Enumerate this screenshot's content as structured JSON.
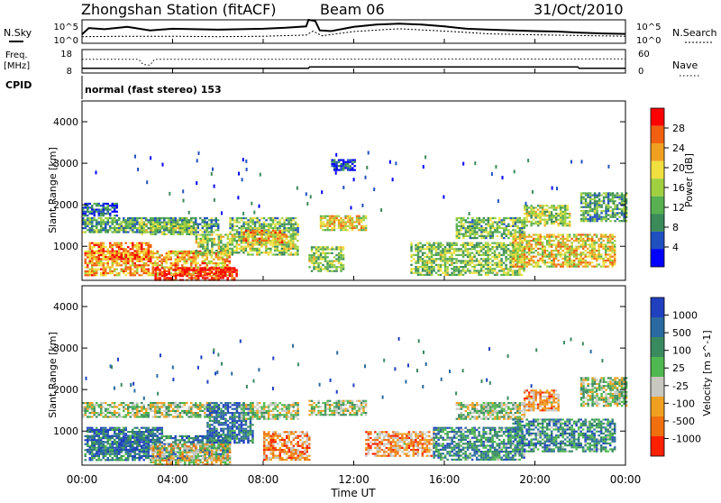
{
  "header": {
    "station": "Zhongshan Station (fitACF)",
    "beam": "Beam 06",
    "date": "31/Oct/2010"
  },
  "noise_panel": {
    "left_label": "N.Sky",
    "right_label": "N.Search",
    "tick_top": "10^5",
    "tick_bottom": "10^0",
    "sky_level": [
      {
        "t": 0.0,
        "v": 0.38
      },
      {
        "t": 0.3,
        "v": 0.65
      },
      {
        "t": 1.0,
        "v": 0.6
      },
      {
        "t": 2.0,
        "v": 0.7
      },
      {
        "t": 3.0,
        "v": 0.55
      },
      {
        "t": 4.0,
        "v": 0.62
      },
      {
        "t": 5.0,
        "v": 0.6
      },
      {
        "t": 6.0,
        "v": 0.58
      },
      {
        "t": 7.0,
        "v": 0.6
      },
      {
        "t": 8.0,
        "v": 0.62
      },
      {
        "t": 9.0,
        "v": 0.66
      },
      {
        "t": 9.9,
        "v": 0.72
      },
      {
        "t": 10.0,
        "v": 1.0
      },
      {
        "t": 10.3,
        "v": 0.95
      },
      {
        "t": 10.5,
        "v": 0.55
      },
      {
        "t": 11.0,
        "v": 0.52
      },
      {
        "t": 12.0,
        "v": 0.7
      },
      {
        "t": 13.0,
        "v": 0.8
      },
      {
        "t": 14.0,
        "v": 0.84
      },
      {
        "t": 15.0,
        "v": 0.8
      },
      {
        "t": 16.0,
        "v": 0.72
      },
      {
        "t": 17.0,
        "v": 0.62
      },
      {
        "t": 18.0,
        "v": 0.58
      },
      {
        "t": 19.0,
        "v": 0.55
      },
      {
        "t": 20.0,
        "v": 0.52
      },
      {
        "t": 21.0,
        "v": 0.5
      },
      {
        "t": 22.0,
        "v": 0.45
      },
      {
        "t": 23.0,
        "v": 0.42
      },
      {
        "t": 24.0,
        "v": 0.4
      }
    ],
    "search_level": [
      {
        "t": 0.0,
        "v": 0.28
      },
      {
        "t": 2.0,
        "v": 0.3
      },
      {
        "t": 4.0,
        "v": 0.3
      },
      {
        "t": 6.0,
        "v": 0.28
      },
      {
        "t": 8.0,
        "v": 0.3
      },
      {
        "t": 9.9,
        "v": 0.35
      },
      {
        "t": 10.2,
        "v": 0.52
      },
      {
        "t": 10.6,
        "v": 0.32
      },
      {
        "t": 12.0,
        "v": 0.5
      },
      {
        "t": 14.0,
        "v": 0.62
      },
      {
        "t": 16.0,
        "v": 0.52
      },
      {
        "t": 18.0,
        "v": 0.4
      },
      {
        "t": 20.0,
        "v": 0.36
      },
      {
        "t": 22.0,
        "v": 0.33
      },
      {
        "t": 24.0,
        "v": 0.3
      }
    ]
  },
  "freq_panel": {
    "left_label_top": "Freq.",
    "left_label_bottom": "[MHz]",
    "right_label": "Nave",
    "tick_left_top": "18",
    "tick_left_bottom": "8",
    "tick_right_top": "60",
    "tick_right_bottom": "0",
    "freq_mhz": [
      {
        "t": 0.0,
        "v": 10.0
      },
      {
        "t": 10.0,
        "v": 10.0
      },
      {
        "t": 10.05,
        "v": 10.6
      },
      {
        "t": 21.9,
        "v": 10.6
      },
      {
        "t": 21.95,
        "v": 10.0
      },
      {
        "t": 24.0,
        "v": 10.0
      }
    ],
    "nave": [
      {
        "t": 0.0,
        "v": 35
      },
      {
        "t": 2.5,
        "v": 35
      },
      {
        "t": 2.7,
        "v": 22
      },
      {
        "t": 3.0,
        "v": 20
      },
      {
        "t": 3.2,
        "v": 35
      },
      {
        "t": 24.0,
        "v": 36
      }
    ]
  },
  "cpid": {
    "label": "CPID",
    "mode": "normal (fast stereo) 153"
  },
  "x_axis": {
    "label": "Time UT",
    "ticks": [
      "00:00",
      "04:00",
      "08:00",
      "12:00",
      "16:00",
      "20:00",
      "00:00"
    ],
    "range_hours": [
      0,
      24
    ]
  },
  "chart_data": [
    {
      "type": "heatmap",
      "title": "",
      "ylabel": "Slant Range [km]",
      "xlabel": "Time UT",
      "ylim": [
        180,
        4500
      ],
      "xlim": [
        0,
        24
      ],
      "yticks": [
        "1000",
        "2000",
        "3000",
        "4000"
      ],
      "colorbar": {
        "label": "Power [dB]",
        "ticks": [
          "4",
          "8",
          "12",
          "16",
          "20",
          "24",
          "28"
        ],
        "range": [
          0,
          30
        ],
        "colors": [
          "#0000ff",
          "#2050c0",
          "#3a8a5a",
          "#58b050",
          "#a0d040",
          "#f0e040",
          "#f0a020",
          "#f06010",
          "#ff0000"
        ]
      },
      "regions": [
        {
          "t0": 0.1,
          "t1": 6.5,
          "r0": 300,
          "r1": 900,
          "level": 0.7
        },
        {
          "t0": 3.2,
          "t1": 6.8,
          "r0": 200,
          "r1": 500,
          "level": 0.95
        },
        {
          "t0": 0.3,
          "t1": 3.0,
          "r0": 700,
          "r1": 1100,
          "level": 0.78
        },
        {
          "t0": 0.0,
          "t1": 6.0,
          "r0": 1350,
          "r1": 1700,
          "level": 0.35
        },
        {
          "t0": 0.0,
          "t1": 1.5,
          "r0": 1750,
          "r1": 2050,
          "level": 0.2
        },
        {
          "t0": 2.5,
          "t1": 5.0,
          "r0": 1300,
          "r1": 1600,
          "level": 0.45
        },
        {
          "t0": 5.0,
          "t1": 9.5,
          "r0": 800,
          "r1": 1300,
          "level": 0.5
        },
        {
          "t0": 6.5,
          "t1": 9.5,
          "r0": 1300,
          "r1": 1700,
          "level": 0.4
        },
        {
          "t0": 7.0,
          "t1": 9.0,
          "r0": 1100,
          "r1": 1400,
          "level": 0.7
        },
        {
          "t0": 10.0,
          "t1": 11.5,
          "r0": 400,
          "r1": 1000,
          "level": 0.45
        },
        {
          "t0": 10.5,
          "t1": 12.5,
          "r0": 1400,
          "r1": 1750,
          "level": 0.6
        },
        {
          "t0": 14.5,
          "t1": 19.5,
          "r0": 300,
          "r1": 1100,
          "level": 0.45
        },
        {
          "t0": 16.5,
          "t1": 19.5,
          "r0": 1200,
          "r1": 1700,
          "level": 0.4
        },
        {
          "t0": 19.0,
          "t1": 23.5,
          "r0": 500,
          "r1": 1300,
          "level": 0.62
        },
        {
          "t0": 19.5,
          "t1": 21.5,
          "r0": 1500,
          "r1": 2000,
          "level": 0.5
        },
        {
          "t0": 22.0,
          "t1": 24.0,
          "r0": 1600,
          "r1": 2300,
          "level": 0.35
        },
        {
          "t0": 11.0,
          "t1": 12.0,
          "r0": 2850,
          "r1": 3100,
          "level": 0.12
        }
      ]
    },
    {
      "type": "heatmap",
      "title": "",
      "ylabel": "Slant Range [km]",
      "xlabel": "Time UT",
      "ylim": [
        180,
        4500
      ],
      "xlim": [
        0,
        24
      ],
      "yticks": [
        "1000",
        "2000",
        "3000",
        "4000"
      ],
      "colorbar": {
        "label": "Velocity [m s^-1]",
        "ticks": [
          "1000",
          "500",
          "100",
          "25",
          "-25",
          "-100",
          "-500",
          "-1000"
        ],
        "range": [
          -1000,
          1000
        ],
        "colors": [
          "#2040c0",
          "#2a6aa0",
          "#3a8a60",
          "#50b850",
          "#c8c8c0",
          "#f0a020",
          "#f07010",
          "#ff2000"
        ]
      },
      "regions": [
        {
          "t0": 0.1,
          "t1": 6.5,
          "r0": 300,
          "r1": 900,
          "level": 0.25
        },
        {
          "t0": 0.2,
          "t1": 3.5,
          "r0": 500,
          "r1": 1100,
          "level": 0.2
        },
        {
          "t0": 3.0,
          "t1": 6.5,
          "r0": 200,
          "r1": 700,
          "level": 0.6
        },
        {
          "t0": 0.0,
          "t1": 6.0,
          "r0": 1350,
          "r1": 1700,
          "level": 0.5
        },
        {
          "t0": 5.5,
          "t1": 7.5,
          "r0": 700,
          "r1": 1700,
          "level": 0.2
        },
        {
          "t0": 7.0,
          "t1": 9.5,
          "r0": 1300,
          "r1": 1700,
          "level": 0.5
        },
        {
          "t0": 8.0,
          "t1": 10.0,
          "r0": 300,
          "r1": 1000,
          "level": 0.75
        },
        {
          "t0": 10.0,
          "t1": 12.5,
          "r0": 1400,
          "r1": 1750,
          "level": 0.5
        },
        {
          "t0": 12.5,
          "t1": 15.5,
          "r0": 400,
          "r1": 1000,
          "level": 0.72
        },
        {
          "t0": 15.5,
          "t1": 19.5,
          "r0": 300,
          "r1": 1100,
          "level": 0.3
        },
        {
          "t0": 16.5,
          "t1": 19.5,
          "r0": 1300,
          "r1": 1700,
          "level": 0.5
        },
        {
          "t0": 19.0,
          "t1": 23.5,
          "r0": 500,
          "r1": 1300,
          "level": 0.3
        },
        {
          "t0": 19.5,
          "t1": 21.0,
          "r0": 1500,
          "r1": 2000,
          "level": 0.72
        },
        {
          "t0": 22.0,
          "t1": 24.0,
          "r0": 1600,
          "r1": 2300,
          "level": 0.5
        }
      ]
    }
  ]
}
